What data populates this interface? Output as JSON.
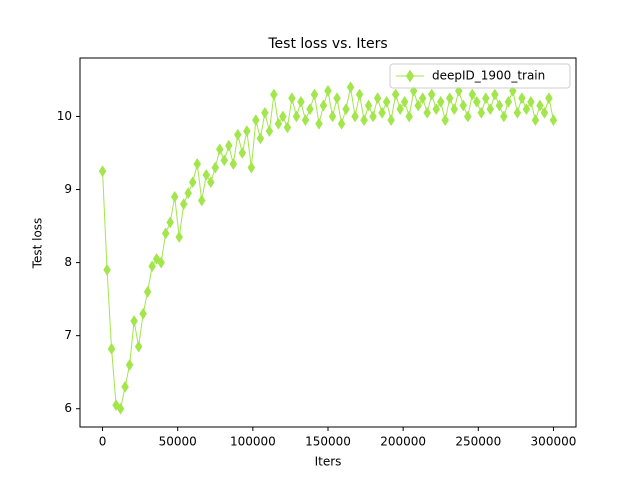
{
  "chart_data": {
    "type": "line",
    "title": "Test loss  vs. Iters",
    "x_label": "Iters",
    "y_label": "Test loss",
    "x": [
      0,
      3000,
      6000,
      9000,
      12000,
      15000,
      18000,
      21000,
      24000,
      27000,
      30000,
      33000,
      36000,
      39000,
      42000,
      45000,
      48000,
      51000,
      54000,
      57000,
      60000,
      63000,
      66000,
      69000,
      72000,
      75000,
      78000,
      81000,
      84000,
      87000,
      90000,
      93000,
      96000,
      99000,
      102000,
      105000,
      108000,
      111000,
      114000,
      117000,
      120000,
      123000,
      126000,
      129000,
      132000,
      135000,
      138000,
      141000,
      144000,
      147000,
      150000,
      153000,
      156000,
      159000,
      162000,
      165000,
      168000,
      171000,
      174000,
      177000,
      180000,
      183000,
      186000,
      189000,
      192000,
      195000,
      198000,
      201000,
      204000,
      207000,
      210000,
      213000,
      216000,
      219000,
      222000,
      225000,
      228000,
      231000,
      234000,
      237000,
      240000,
      243000,
      246000,
      249000,
      252000,
      255000,
      258000,
      261000,
      264000,
      267000,
      270000,
      273000,
      276000,
      279000,
      282000,
      285000,
      288000,
      291000,
      294000,
      297000,
      300000
    ],
    "series": [
      {
        "name": "deepID_1900_train",
        "color": "#a2e64c",
        "values": [
          9.25,
          7.9,
          6.82,
          6.05,
          6.0,
          6.3,
          6.6,
          7.2,
          6.85,
          7.3,
          7.6,
          7.95,
          8.05,
          8.0,
          8.4,
          8.55,
          8.9,
          8.35,
          8.8,
          8.95,
          9.1,
          9.35,
          8.85,
          9.2,
          9.1,
          9.3,
          9.55,
          9.4,
          9.6,
          9.35,
          9.75,
          9.5,
          9.8,
          9.3,
          9.95,
          9.7,
          10.05,
          9.8,
          10.3,
          9.9,
          10.0,
          9.85,
          10.25,
          10.0,
          10.2,
          9.95,
          10.1,
          10.3,
          9.9,
          10.15,
          10.35,
          10.0,
          10.25,
          9.9,
          10.1,
          10.4,
          10.0,
          10.3,
          9.95,
          10.15,
          10.0,
          10.25,
          10.05,
          10.2,
          9.95,
          10.3,
          10.1,
          10.2,
          10.0,
          10.35,
          10.15,
          10.25,
          10.05,
          10.3,
          10.1,
          10.2,
          9.95,
          10.25,
          10.1,
          10.35,
          10.15,
          10.0,
          10.3,
          10.2,
          10.05,
          10.25,
          10.1,
          10.3,
          10.15,
          10.0,
          10.2,
          10.35,
          10.05,
          10.25,
          10.1,
          10.2,
          9.95,
          10.15,
          10.05,
          10.25,
          9.95
        ]
      }
    ],
    "xlim": [
      -15000,
      315000
    ],
    "ylim": [
      5.75,
      10.8
    ],
    "xticks": [
      0,
      50000,
      100000,
      150000,
      200000,
      250000,
      300000
    ],
    "yticks": [
      6,
      7,
      8,
      9,
      10
    ],
    "legend": "upper right"
  }
}
